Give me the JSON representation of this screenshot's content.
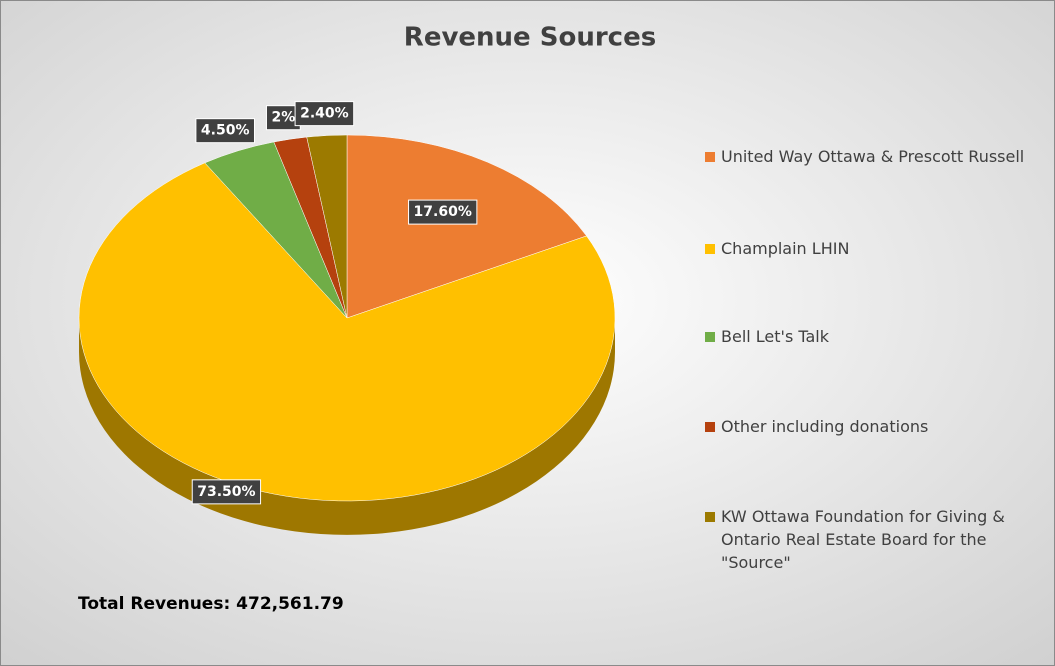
{
  "chart_data": {
    "type": "pie",
    "title": "Revenue Sources",
    "categories": [
      "United Way Ottawa & Prescott Russell",
      "Champlain LHIN",
      "Bell Let's Talk",
      "Other including donations",
      "KW Ottawa Foundation for Giving & Ontario Real Estate Board for the \"Source\""
    ],
    "values": [
      17.6,
      73.5,
      4.5,
      2,
      2.4
    ],
    "value_labels": [
      "17.60%",
      "73.50%",
      "4.50%",
      "2%",
      "2.40%"
    ],
    "colors": [
      "#ed7d31",
      "#ffc000",
      "#70ad47",
      "#b5410e",
      "#9c7a00"
    ],
    "legend": "right",
    "annotation": "Total Revenues: 472,561.79"
  }
}
